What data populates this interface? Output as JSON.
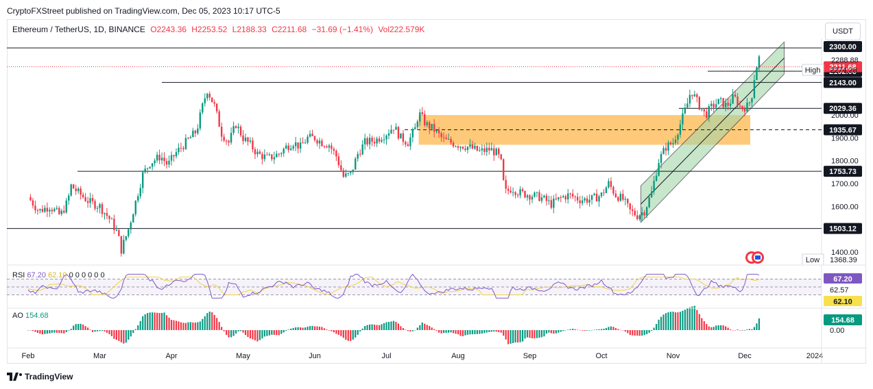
{
  "header": {
    "publisher": "CryptoFXStreet published on TradingView.com, Dec 05, 2023 10:17 UTC-5"
  },
  "legend": {
    "symbol": "Ethereum / TetherUS, 1D, BINANCE",
    "open": "O2243.36",
    "high": "H2253.52",
    "low": "L2188.33",
    "close": "C2211.68",
    "change": "−31.69 (−1.41%)",
    "volume": "Vol222.579K"
  },
  "currency_button": "USDT",
  "rsi_legend": {
    "name": "RSI",
    "v1": "67.20",
    "v2": "62.10",
    "rest": "0 0 0 0 0 0"
  },
  "ao_legend": {
    "name": "AO",
    "value": "154.68"
  },
  "footer": {
    "brand": "TradingView"
  },
  "colors": {
    "up": "#089981",
    "down": "#f23645",
    "zone": "#ffb74d",
    "channel": "#4caf50",
    "rsi": "#7e57c2",
    "rsi_ma": "#f0d33a"
  },
  "chart_data": {
    "type": "candlestick",
    "title": "Ethereum / TetherUS, 1D, BINANCE",
    "x_ticks": [
      "Feb",
      "Mar",
      "Apr",
      "May",
      "Jun",
      "Jul",
      "Aug",
      "Sep",
      "Oct",
      "Nov",
      "Dec",
      "2024"
    ],
    "y_ticks": [
      1400,
      1500,
      1600,
      1700,
      1800,
      1900,
      2000,
      2100,
      2200,
      2300
    ],
    "ylim": [
      1360,
      2330
    ],
    "horizontal_levels": [
      {
        "value": 2300.0,
        "label": "2300.00"
      },
      {
        "value": 2192.03,
        "label": "2192.03"
      },
      {
        "value": 2143.0,
        "label": "2143.00"
      },
      {
        "value": 2029.36,
        "label": "2029.36"
      },
      {
        "value": 1935.67,
        "label": "1935.67",
        "style": "dashed"
      },
      {
        "value": 1753.73,
        "label": "1753.73"
      },
      {
        "value": 1503.12,
        "label": "1503.12"
      }
    ],
    "last_price": {
      "value": 2211.68,
      "label": "2211.68"
    },
    "high": {
      "label": "High",
      "value": "2274.28"
    },
    "low": {
      "label": "Low",
      "value": "1368.39"
    },
    "extra_axis_labels": [
      "2288.88"
    ],
    "supply_zone": {
      "from": 1870,
      "to": 2000
    },
    "ascending_channel": {
      "start_month_index": 8.55,
      "end_month_index": 10.55,
      "lower_start": 1530,
      "lower_end": 2180,
      "upper_start": 1690,
      "upper_end": 2320
    },
    "close_path": [
      [
        0.0,
        1640
      ],
      [
        0.15,
        1580
      ],
      [
        0.3,
        1600
      ],
      [
        0.45,
        1560
      ],
      [
        0.55,
        1620
      ],
      [
        0.6,
        1690
      ],
      [
        0.7,
        1660
      ],
      [
        0.85,
        1620
      ],
      [
        1.0,
        1600
      ],
      [
        1.15,
        1540
      ],
      [
        1.25,
        1480
      ],
      [
        1.3,
        1410
      ],
      [
        1.4,
        1500
      ],
      [
        1.5,
        1620
      ],
      [
        1.6,
        1740
      ],
      [
        1.7,
        1790
      ],
      [
        1.85,
        1820
      ],
      [
        1.95,
        1780
      ],
      [
        2.05,
        1830
      ],
      [
        2.2,
        1880
      ],
      [
        2.35,
        1930
      ],
      [
        2.45,
        2060
      ],
      [
        2.5,
        2110
      ],
      [
        2.6,
        2040
      ],
      [
        2.7,
        1920
      ],
      [
        2.8,
        1880
      ],
      [
        2.9,
        1960
      ],
      [
        3.0,
        1900
      ],
      [
        3.1,
        1870
      ],
      [
        3.2,
        1830
      ],
      [
        3.35,
        1810
      ],
      [
        3.5,
        1830
      ],
      [
        3.6,
        1860
      ],
      [
        3.7,
        1880
      ],
      [
        3.8,
        1860
      ],
      [
        3.9,
        1900
      ],
      [
        4.0,
        1900
      ],
      [
        4.1,
        1880
      ],
      [
        4.2,
        1870
      ],
      [
        4.3,
        1820
      ],
      [
        4.4,
        1730
      ],
      [
        4.5,
        1740
      ],
      [
        4.6,
        1830
      ],
      [
        4.7,
        1880
      ],
      [
        4.85,
        1890
      ],
      [
        5.0,
        1920
      ],
      [
        5.1,
        1950
      ],
      [
        5.2,
        1900
      ],
      [
        5.3,
        1880
      ],
      [
        5.4,
        1940
      ],
      [
        5.45,
        2010
      ],
      [
        5.55,
        1960
      ],
      [
        5.65,
        1940
      ],
      [
        5.8,
        1890
      ],
      [
        5.9,
        1880
      ],
      [
        6.0,
        1870
      ],
      [
        6.15,
        1860
      ],
      [
        6.3,
        1840
      ],
      [
        6.45,
        1850
      ],
      [
        6.55,
        1830
      ],
      [
        6.6,
        1790
      ],
      [
        6.65,
        1660
      ],
      [
        6.75,
        1680
      ],
      [
        6.85,
        1660
      ],
      [
        7.0,
        1650
      ],
      [
        7.15,
        1640
      ],
      [
        7.3,
        1610
      ],
      [
        7.45,
        1640
      ],
      [
        7.55,
        1650
      ],
      [
        7.7,
        1630
      ],
      [
        7.85,
        1630
      ],
      [
        8.0,
        1650
      ],
      [
        8.1,
        1700
      ],
      [
        8.2,
        1650
      ],
      [
        8.3,
        1630
      ],
      [
        8.4,
        1580
      ],
      [
        8.5,
        1560
      ],
      [
        8.6,
        1580
      ],
      [
        8.7,
        1660
      ],
      [
        8.8,
        1800
      ],
      [
        8.9,
        1860
      ],
      [
        9.0,
        1880
      ],
      [
        9.1,
        1960
      ],
      [
        9.2,
        2050
      ],
      [
        9.25,
        2110
      ],
      [
        9.35,
        2050
      ],
      [
        9.45,
        2000
      ],
      [
        9.55,
        2040
      ],
      [
        9.65,
        2060
      ],
      [
        9.75,
        2040
      ],
      [
        9.85,
        2080
      ],
      [
        9.95,
        2030
      ],
      [
        10.05,
        2040
      ],
      [
        10.1,
        2090
      ],
      [
        10.15,
        2200
      ],
      [
        10.2,
        2250
      ],
      [
        10.23,
        2211.68
      ]
    ],
    "rsi": {
      "levels": [
        70,
        50,
        30
      ],
      "labels": [
        "67.20",
        "62.57",
        "62.10"
      ]
    },
    "ao": {
      "labels": [
        "154.68",
        "0.00"
      ]
    }
  }
}
